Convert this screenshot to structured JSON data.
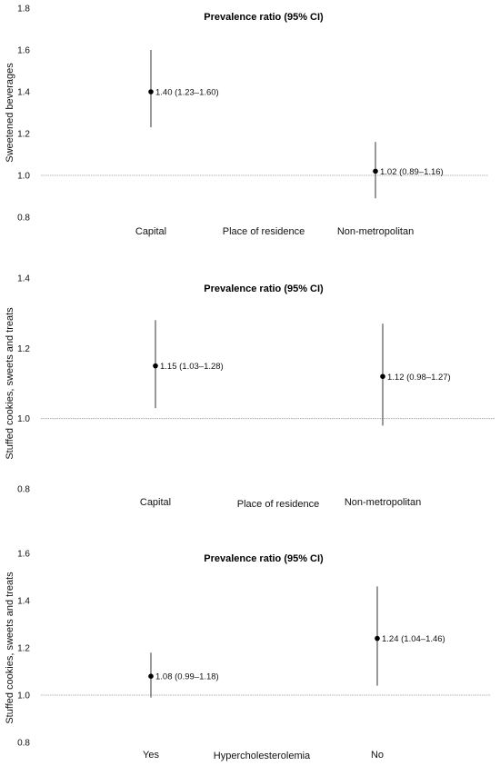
{
  "chart_data": [
    {
      "type": "scatter",
      "title": "Prevalence ratio (95% CI)",
      "ylabel": "Sweetened beverages",
      "xlabel": "Place of residence",
      "categories": [
        "Capital",
        "Non-metropolitan"
      ],
      "yticks": [
        "0.8",
        "1.0",
        "1.2",
        "1.4",
        "1.6",
        "1.8"
      ],
      "ylim": [
        0.8,
        1.8
      ],
      "reference_line": 1.0,
      "points": [
        {
          "category": "Capital",
          "value": 1.4,
          "lower": 1.23,
          "upper": 1.6,
          "label": "1.40 (1.23–1.60)"
        },
        {
          "category": "Non-metropolitan",
          "value": 1.02,
          "lower": 0.89,
          "upper": 1.16,
          "label": "1.02 (0.89–1.16)"
        }
      ]
    },
    {
      "type": "scatter",
      "title": "Prevalence ratio (95% CI)",
      "ylabel": "Stuffed cookies, sweets and treats",
      "xlabel": "Place of residence",
      "categories": [
        "Capital",
        "Non-metropolitan"
      ],
      "yticks": [
        "0.8",
        "1.0",
        "1.2",
        "1.4"
      ],
      "ylim": [
        0.8,
        1.4
      ],
      "reference_line": 1.0,
      "points": [
        {
          "category": "Capital",
          "value": 1.15,
          "lower": 1.03,
          "upper": 1.28,
          "label": "1.15 (1.03–1.28)"
        },
        {
          "category": "Non-metropolitan",
          "value": 1.12,
          "lower": 0.98,
          "upper": 1.27,
          "label": "1.12 (0.98–1.27)"
        }
      ]
    },
    {
      "type": "scatter",
      "title": "Prevalence ratio (95% CI)",
      "ylabel": "Stuffed cookies, sweets and treats",
      "xlabel": "Hypercholesterolemia",
      "categories": [
        "Yes",
        "No"
      ],
      "yticks": [
        "0.8",
        "1.0",
        "1.2",
        "1.4",
        "1.6"
      ],
      "ylim": [
        0.8,
        1.6
      ],
      "reference_line": 1.0,
      "points": [
        {
          "category": "Yes",
          "value": 1.08,
          "lower": 0.99,
          "upper": 1.18,
          "label": "1.08 (0.99–1.18)"
        },
        {
          "category": "No",
          "value": 1.24,
          "lower": 1.04,
          "upper": 1.46,
          "label": "1.24 (1.04–1.46)"
        }
      ]
    }
  ]
}
